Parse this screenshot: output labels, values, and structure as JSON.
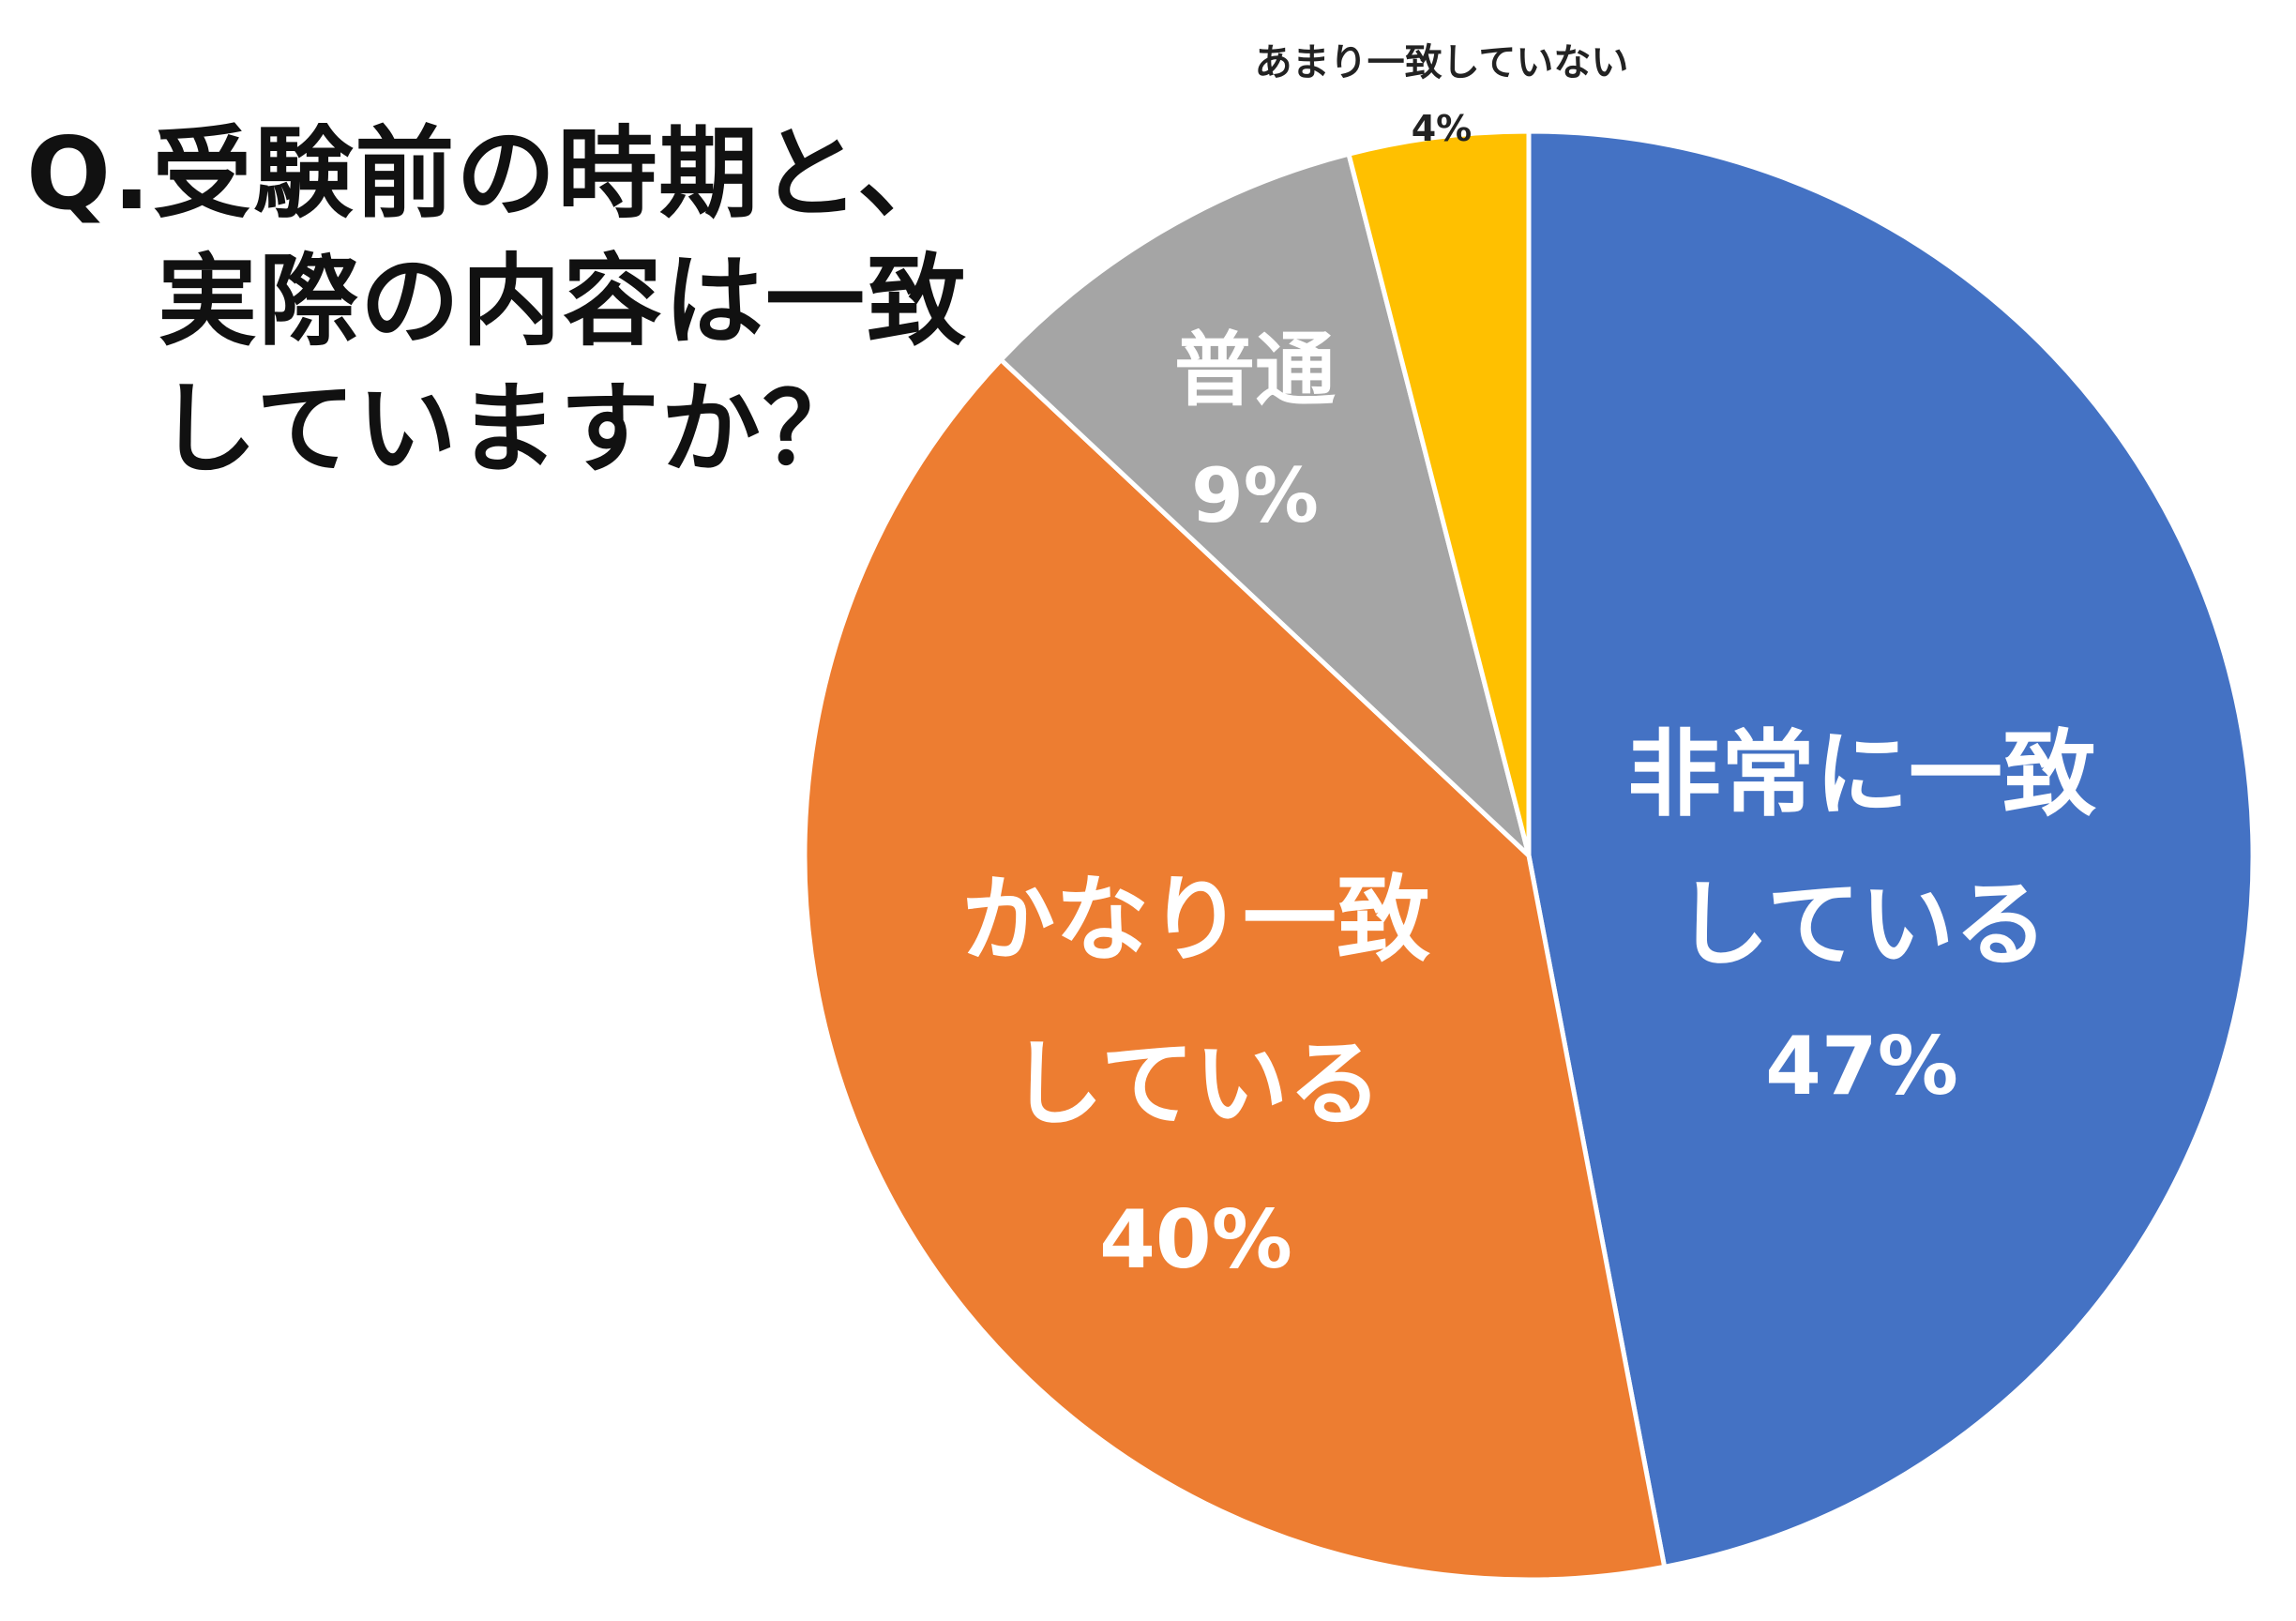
{
  "question": {
    "lines": [
      "Q.受験前の時期と、",
      "実際の内容は一致",
      "していますか？"
    ]
  },
  "chart_data": {
    "type": "pie",
    "title": "Q.受験前の時期と、実際の内容は一致していますか？",
    "start": "12 o'clock",
    "direction": "clockwise",
    "slices": [
      {
        "label_lines": [
          "非常に一致",
          "している"
        ],
        "value": 47,
        "value_label": "47%",
        "color": "#4472C4",
        "label_color": "#FFFFFF",
        "label_position": "inside"
      },
      {
        "label_lines": [
          "かなり一致",
          "している"
        ],
        "value": 40,
        "value_label": "40%",
        "color": "#ED7D31",
        "label_color": "#FFFFFF",
        "label_position": "inside"
      },
      {
        "label_lines": [
          "普通"
        ],
        "value": 9,
        "value_label": "9%",
        "color": "#A5A5A5",
        "label_color": "#FFFFFF",
        "label_position": "inside"
      },
      {
        "label_lines": [
          "あまり一致していない"
        ],
        "value": 4,
        "value_label": "4%",
        "color": "#FFC000",
        "label_color": "#222222",
        "label_position": "outside"
      }
    ],
    "legend": "none"
  }
}
